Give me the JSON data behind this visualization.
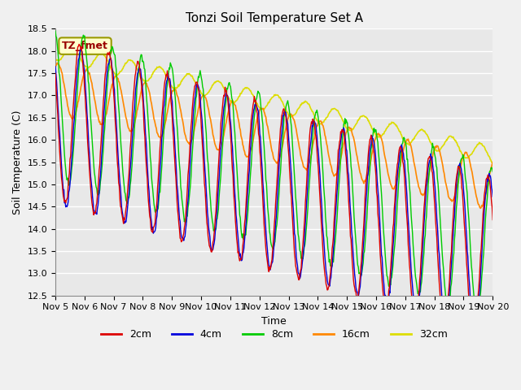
{
  "title": "Tonzi Soil Temperature Set A",
  "xlabel": "Time",
  "ylabel": "Soil Temperature (C)",
  "ylim": [
    12.5,
    18.5
  ],
  "x_tick_labels": [
    "Nov 5",
    "Nov 6",
    "Nov 7",
    "Nov 8",
    "Nov 9",
    "Nov 10",
    "Nov 11",
    "Nov 12",
    "Nov 13",
    "Nov 14",
    "Nov 15",
    "Nov 16",
    "Nov 17",
    "Nov 18",
    "Nov 19",
    "Nov 20"
  ],
  "series": {
    "2cm": {
      "color": "#dd0000",
      "label": "2cm"
    },
    "4cm": {
      "color": "#0000dd",
      "label": "4cm"
    },
    "8cm": {
      "color": "#00cc00",
      "label": "8cm"
    },
    "16cm": {
      "color": "#ff8800",
      "label": "16cm"
    },
    "32cm": {
      "color": "#dddd00",
      "label": "32cm"
    }
  },
  "annotation_text": "TZ_fmet",
  "annotation_color": "#990000",
  "annotation_bg": "#ffffcc",
  "annotation_border": "#999900",
  "plot_bg": "#e8e8e8",
  "fig_bg": "#f0f0f0",
  "grid_color": "#ffffff",
  "title_fontsize": 11,
  "axis_label_fontsize": 9,
  "tick_fontsize": 8
}
